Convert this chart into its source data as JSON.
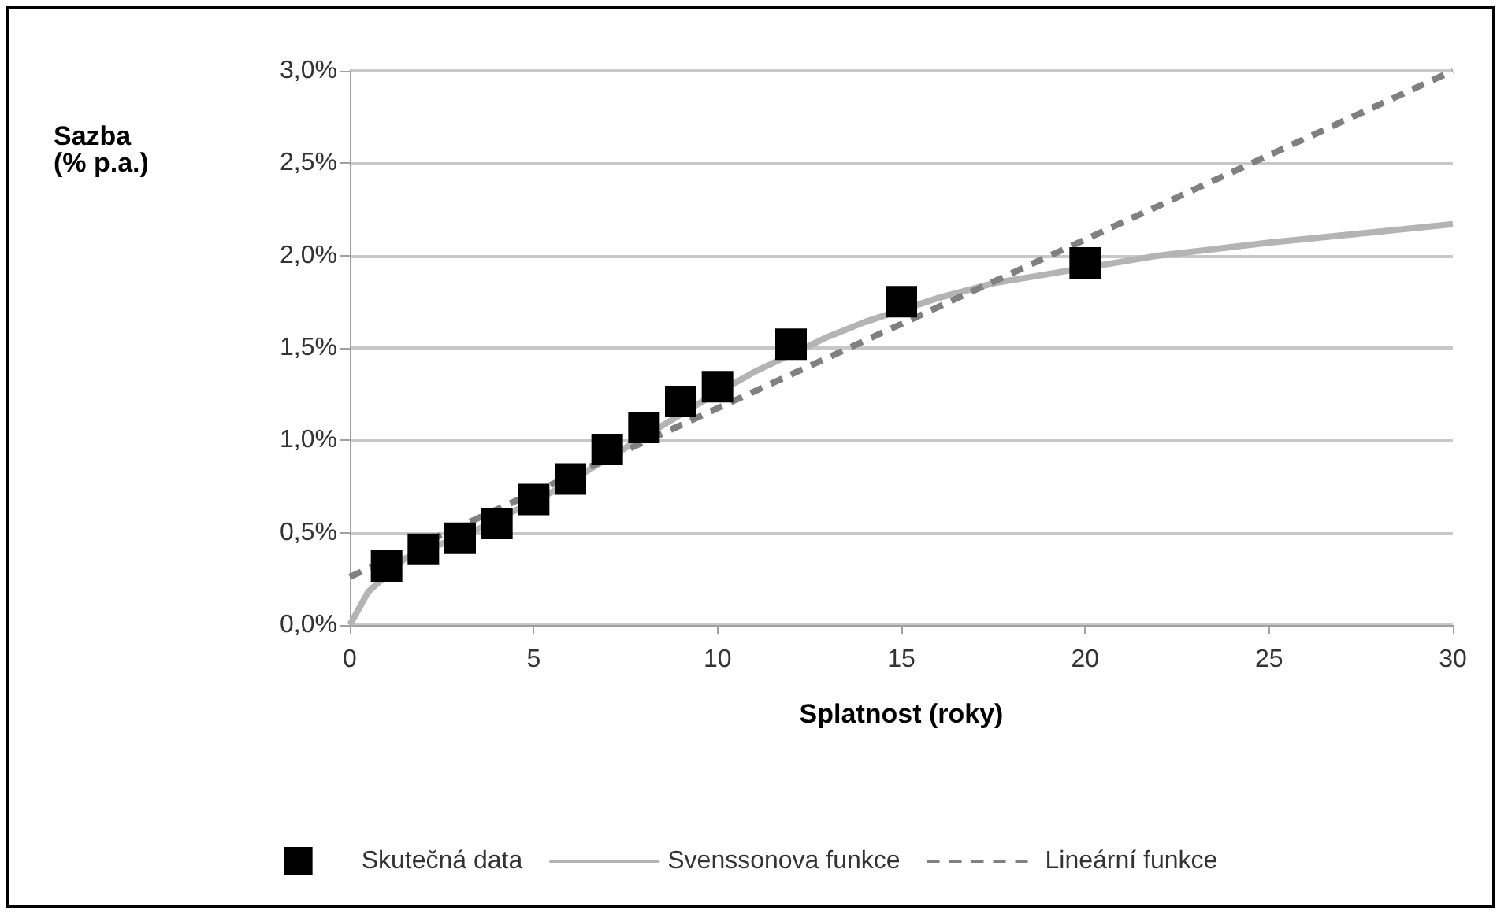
{
  "chart_data": {
    "type": "line",
    "xlabel": "Splatnost (roky)",
    "ylabel": "Sazba\n(% p.a.)",
    "xlim": [
      0,
      30
    ],
    "xticks": [
      0,
      5,
      10,
      15,
      20,
      25,
      30
    ],
    "ylim": [
      0,
      3
    ],
    "yticks": [
      {
        "value": 0,
        "label": "0,0%"
      },
      {
        "value": 0.5,
        "label": "0,5%"
      },
      {
        "value": 1,
        "label": "1,0%"
      },
      {
        "value": 1.5,
        "label": "1,5%"
      },
      {
        "value": 2,
        "label": "2,0%"
      },
      {
        "value": 2.5,
        "label": "2,5%"
      },
      {
        "value": 3,
        "label": "3,0%"
      }
    ],
    "grid": "y",
    "legend": "bottom",
    "series": [
      {
        "name": "Skutečná data",
        "type": "scatter",
        "marker": "square",
        "color": "#000000",
        "x": [
          1,
          2,
          3,
          4,
          5,
          6,
          7,
          8,
          9,
          10,
          12,
          15,
          20
        ],
        "values": [
          0.32,
          0.41,
          0.47,
          0.55,
          0.68,
          0.79,
          0.95,
          1.07,
          1.21,
          1.29,
          1.52,
          1.75,
          1.96
        ]
      },
      {
        "name": "Svenssonova funkce",
        "marker": "none",
        "line_style": "solid",
        "color": "#b4b4b4",
        "x": [
          0,
          0.5,
          1.5,
          2.5,
          3.5,
          4.5,
          5.5,
          6.5,
          7.5,
          8.5,
          9.5,
          11,
          13,
          14,
          16,
          17.5,
          22,
          25,
          28,
          30
        ],
        "values": [
          0,
          0.18,
          0.36,
          0.44,
          0.52,
          0.62,
          0.72,
          0.84,
          0.96,
          1.08,
          1.2,
          1.37,
          1.56,
          1.64,
          1.77,
          1.85,
          2.0,
          2.07,
          2.13,
          2.17
        ]
      },
      {
        "name": "Lineární funkce",
        "marker": "none",
        "line_style": "dashed",
        "color": "#808080",
        "x": [
          0,
          30
        ],
        "values": [
          0.26,
          3.0
        ]
      }
    ]
  }
}
